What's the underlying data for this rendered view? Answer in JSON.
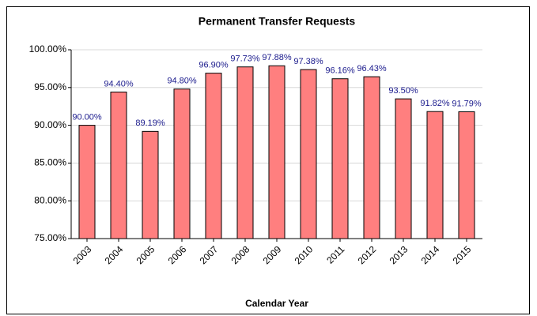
{
  "chart_data": {
    "type": "bar",
    "title": "Permanent Transfer Requests",
    "x_label": "Calendar Year",
    "categories": [
      "2003",
      "2004",
      "2005",
      "2006",
      "2007",
      "2008",
      "2009",
      "2010",
      "2011",
      "2012",
      "2013",
      "2014",
      "2015"
    ],
    "values": [
      90.0,
      94.4,
      89.19,
      94.8,
      96.9,
      97.73,
      97.88,
      97.38,
      96.16,
      96.43,
      93.5,
      91.82,
      91.79
    ],
    "value_labels": [
      "90.00%",
      "94.40%",
      "89.19%",
      "94.80%",
      "96.90%",
      "97.73%",
      "97.88%",
      "97.38%",
      "96.16%",
      "96.43%",
      "93.50%",
      "91.82%",
      "91.79%"
    ],
    "color": "#ff7f7f",
    "ylim": [
      75,
      100
    ],
    "yticks": [
      {
        "value": 75,
        "label": "75.00%"
      },
      {
        "value": 80,
        "label": "80.00%"
      },
      {
        "value": 85,
        "label": "85.00%"
      },
      {
        "value": 90,
        "label": "90.00%"
      },
      {
        "value": 95,
        "label": "95.00%"
      },
      {
        "value": 100,
        "label": "100.00%"
      }
    ],
    "grid": true
  }
}
